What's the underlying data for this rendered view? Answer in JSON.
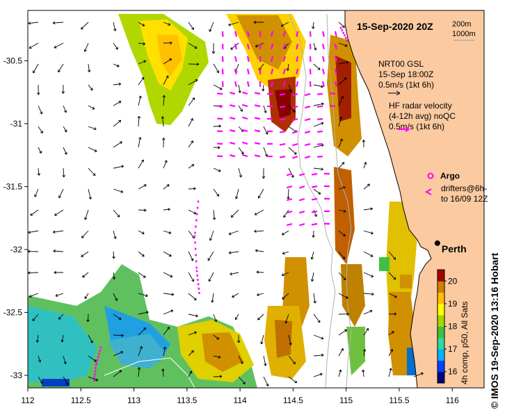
{
  "title": "15-Sep-2020 20Z",
  "isobath_labels": [
    "200m",
    "1000m"
  ],
  "legend": {
    "model_lines": [
      "NRT00 GSL",
      "15-Sep 18:00Z",
      "0.5m/s (1kt 6h)"
    ],
    "radar_lines": [
      "HF radar velocity",
      "(4-12h avg) noQC",
      "0.5m/s (1kt 6h)"
    ],
    "argo_label": "Argo",
    "drifter_lines": [
      "drifters@6h-",
      "to 16/09 12Z"
    ]
  },
  "city": {
    "name": "Perth",
    "lon": 115.86,
    "lat": -31.95
  },
  "axes": {
    "x_ticks": [
      "112",
      "112.5",
      "113",
      "113.5",
      "114",
      "114.5",
      "115",
      "115.5",
      "116"
    ],
    "y_ticks": [
      "-30.5",
      "-31",
      "-31.5",
      "-32",
      "-32.5",
      "-33"
    ],
    "x_range": [
      112,
      116.3
    ],
    "y_range": [
      -33.1,
      -30.1
    ]
  },
  "colorbar": {
    "ticks": [
      "20",
      "19",
      "18",
      "17",
      "16"
    ],
    "range": [
      15.5,
      20.5
    ],
    "label": "4h comp, p50, All Sats",
    "colors": [
      "#000080",
      "#0040ff",
      "#00b4ff",
      "#30d8a0",
      "#40c040",
      "#a0d800",
      "#ffff00",
      "#ffc000",
      "#d08000",
      "#a00000"
    ]
  },
  "credit": "© IMOS 19-Sep-2020 13:16 Hobart",
  "colors": {
    "land": "#fbcaa0",
    "arrow_model": "#000000",
    "arrow_radar": "#ff00ff"
  }
}
